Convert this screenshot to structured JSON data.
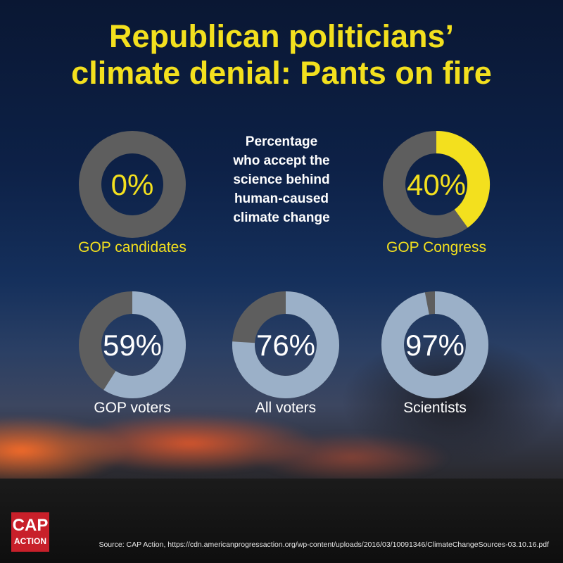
{
  "title_line1": "Republican politicians’",
  "title_line2": "climate denial: Pants on fire",
  "subtitle_lines": [
    "Percentage",
    "who accept the",
    "science behind",
    "human-caused",
    "climate change"
  ],
  "colors": {
    "accent": "#f3e01e",
    "remainder": "#5e5e5e",
    "value_light": "#9bb0c8",
    "text_light": "#ffffff"
  },
  "chart_data": {
    "type": "pie",
    "subtitle": "Percentage who accept the science behind human-caused climate change",
    "categories": [
      "GOP candidates",
      "GOP Congress",
      "GOP voters",
      "All voters",
      "Scientists"
    ],
    "values": [
      0,
      40,
      59,
      76,
      97
    ],
    "value_labels": [
      "0%",
      "40%",
      "59%",
      "76%",
      "97%"
    ],
    "unit": "%"
  },
  "logo": {
    "top": "CAP",
    "bottom": "ACTION"
  },
  "source": "Source: CAP Action, https://cdn.americanprogressaction.org/wp-content/uploads/2016/03/10091346/ClimateChangeSources-03.10.16.pdf"
}
